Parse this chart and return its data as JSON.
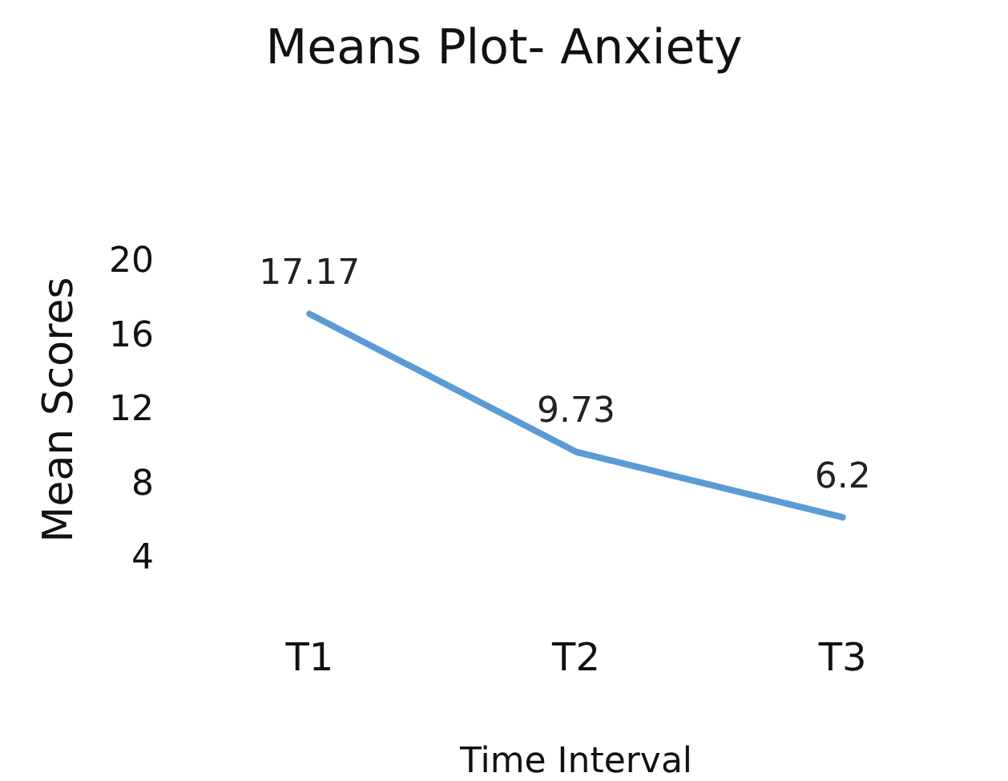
{
  "chart_data": {
    "type": "line",
    "title": "Means Plot- Anxiety",
    "xlabel": "Time Interval",
    "ylabel": "Mean Scores",
    "categories": [
      "T1",
      "T2",
      "T3"
    ],
    "series": [
      {
        "color": "#5b9bd5",
        "values": [
          17.17,
          9.73,
          6.2
        ]
      }
    ],
    "ylim": [
      4,
      20
    ],
    "yticks": [
      4,
      8,
      12,
      16,
      20
    ],
    "grid": false,
    "marker": "none",
    "line_style": "solid",
    "data_labels": true
  }
}
